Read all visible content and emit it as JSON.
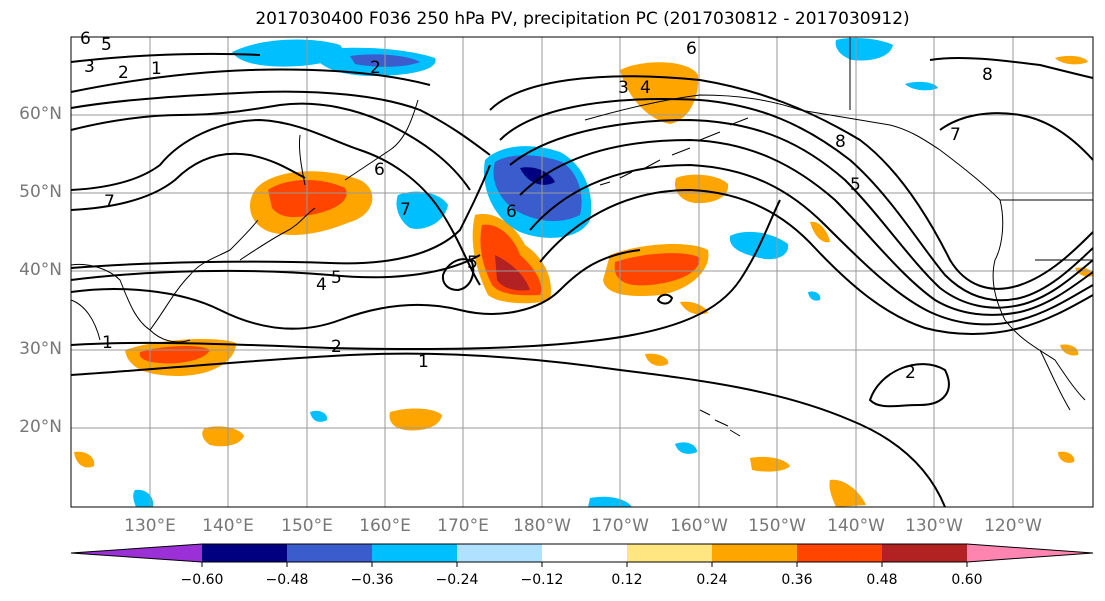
{
  "title": "2017030400 F036 250 hPa PV, precipitation PC (2017030812 - 2017030912)",
  "lat_labels": [
    {
      "text": "60°N"
    },
    {
      "text": "50°N"
    },
    {
      "text": "40°N"
    },
    {
      "text": "30°N"
    },
    {
      "text": "20°N"
    }
  ],
  "lon_labels": [
    {
      "text": "130°E"
    },
    {
      "text": "140°E"
    },
    {
      "text": "150°E"
    },
    {
      "text": "160°E"
    },
    {
      "text": "170°E"
    },
    {
      "text": "180°W"
    },
    {
      "text": "170°W"
    },
    {
      "text": "160°W"
    },
    {
      "text": "150°W"
    },
    {
      "text": "140°W"
    },
    {
      "text": "130°W"
    },
    {
      "text": "120°W"
    }
  ],
  "colorbar": {
    "colors": [
      "#9b30d6",
      "#000080",
      "#3a5ccc",
      "#00bfff",
      "#b0e2ff",
      "#ffffff",
      "#ffe680",
      "#ffa500",
      "#ff4500",
      "#b22222",
      "#ff85b0"
    ],
    "tick_labels": [
      "-0.60",
      "-0.48",
      "-0.36",
      "-0.24",
      "-0.12",
      "0.12",
      "0.24",
      "0.36",
      "0.48",
      "0.60"
    ]
  },
  "contour_labels": [
    "6",
    "5",
    "3",
    "2",
    "1",
    "2",
    "6",
    "3",
    "4",
    "8",
    "7",
    "7",
    "6",
    "8",
    "5",
    "6",
    "5",
    "5",
    "4",
    "1",
    "2",
    "1",
    "2",
    "7"
  ],
  "colors": {
    "land_line": "#000000",
    "grid": "#999999",
    "contour": "#000000"
  }
}
